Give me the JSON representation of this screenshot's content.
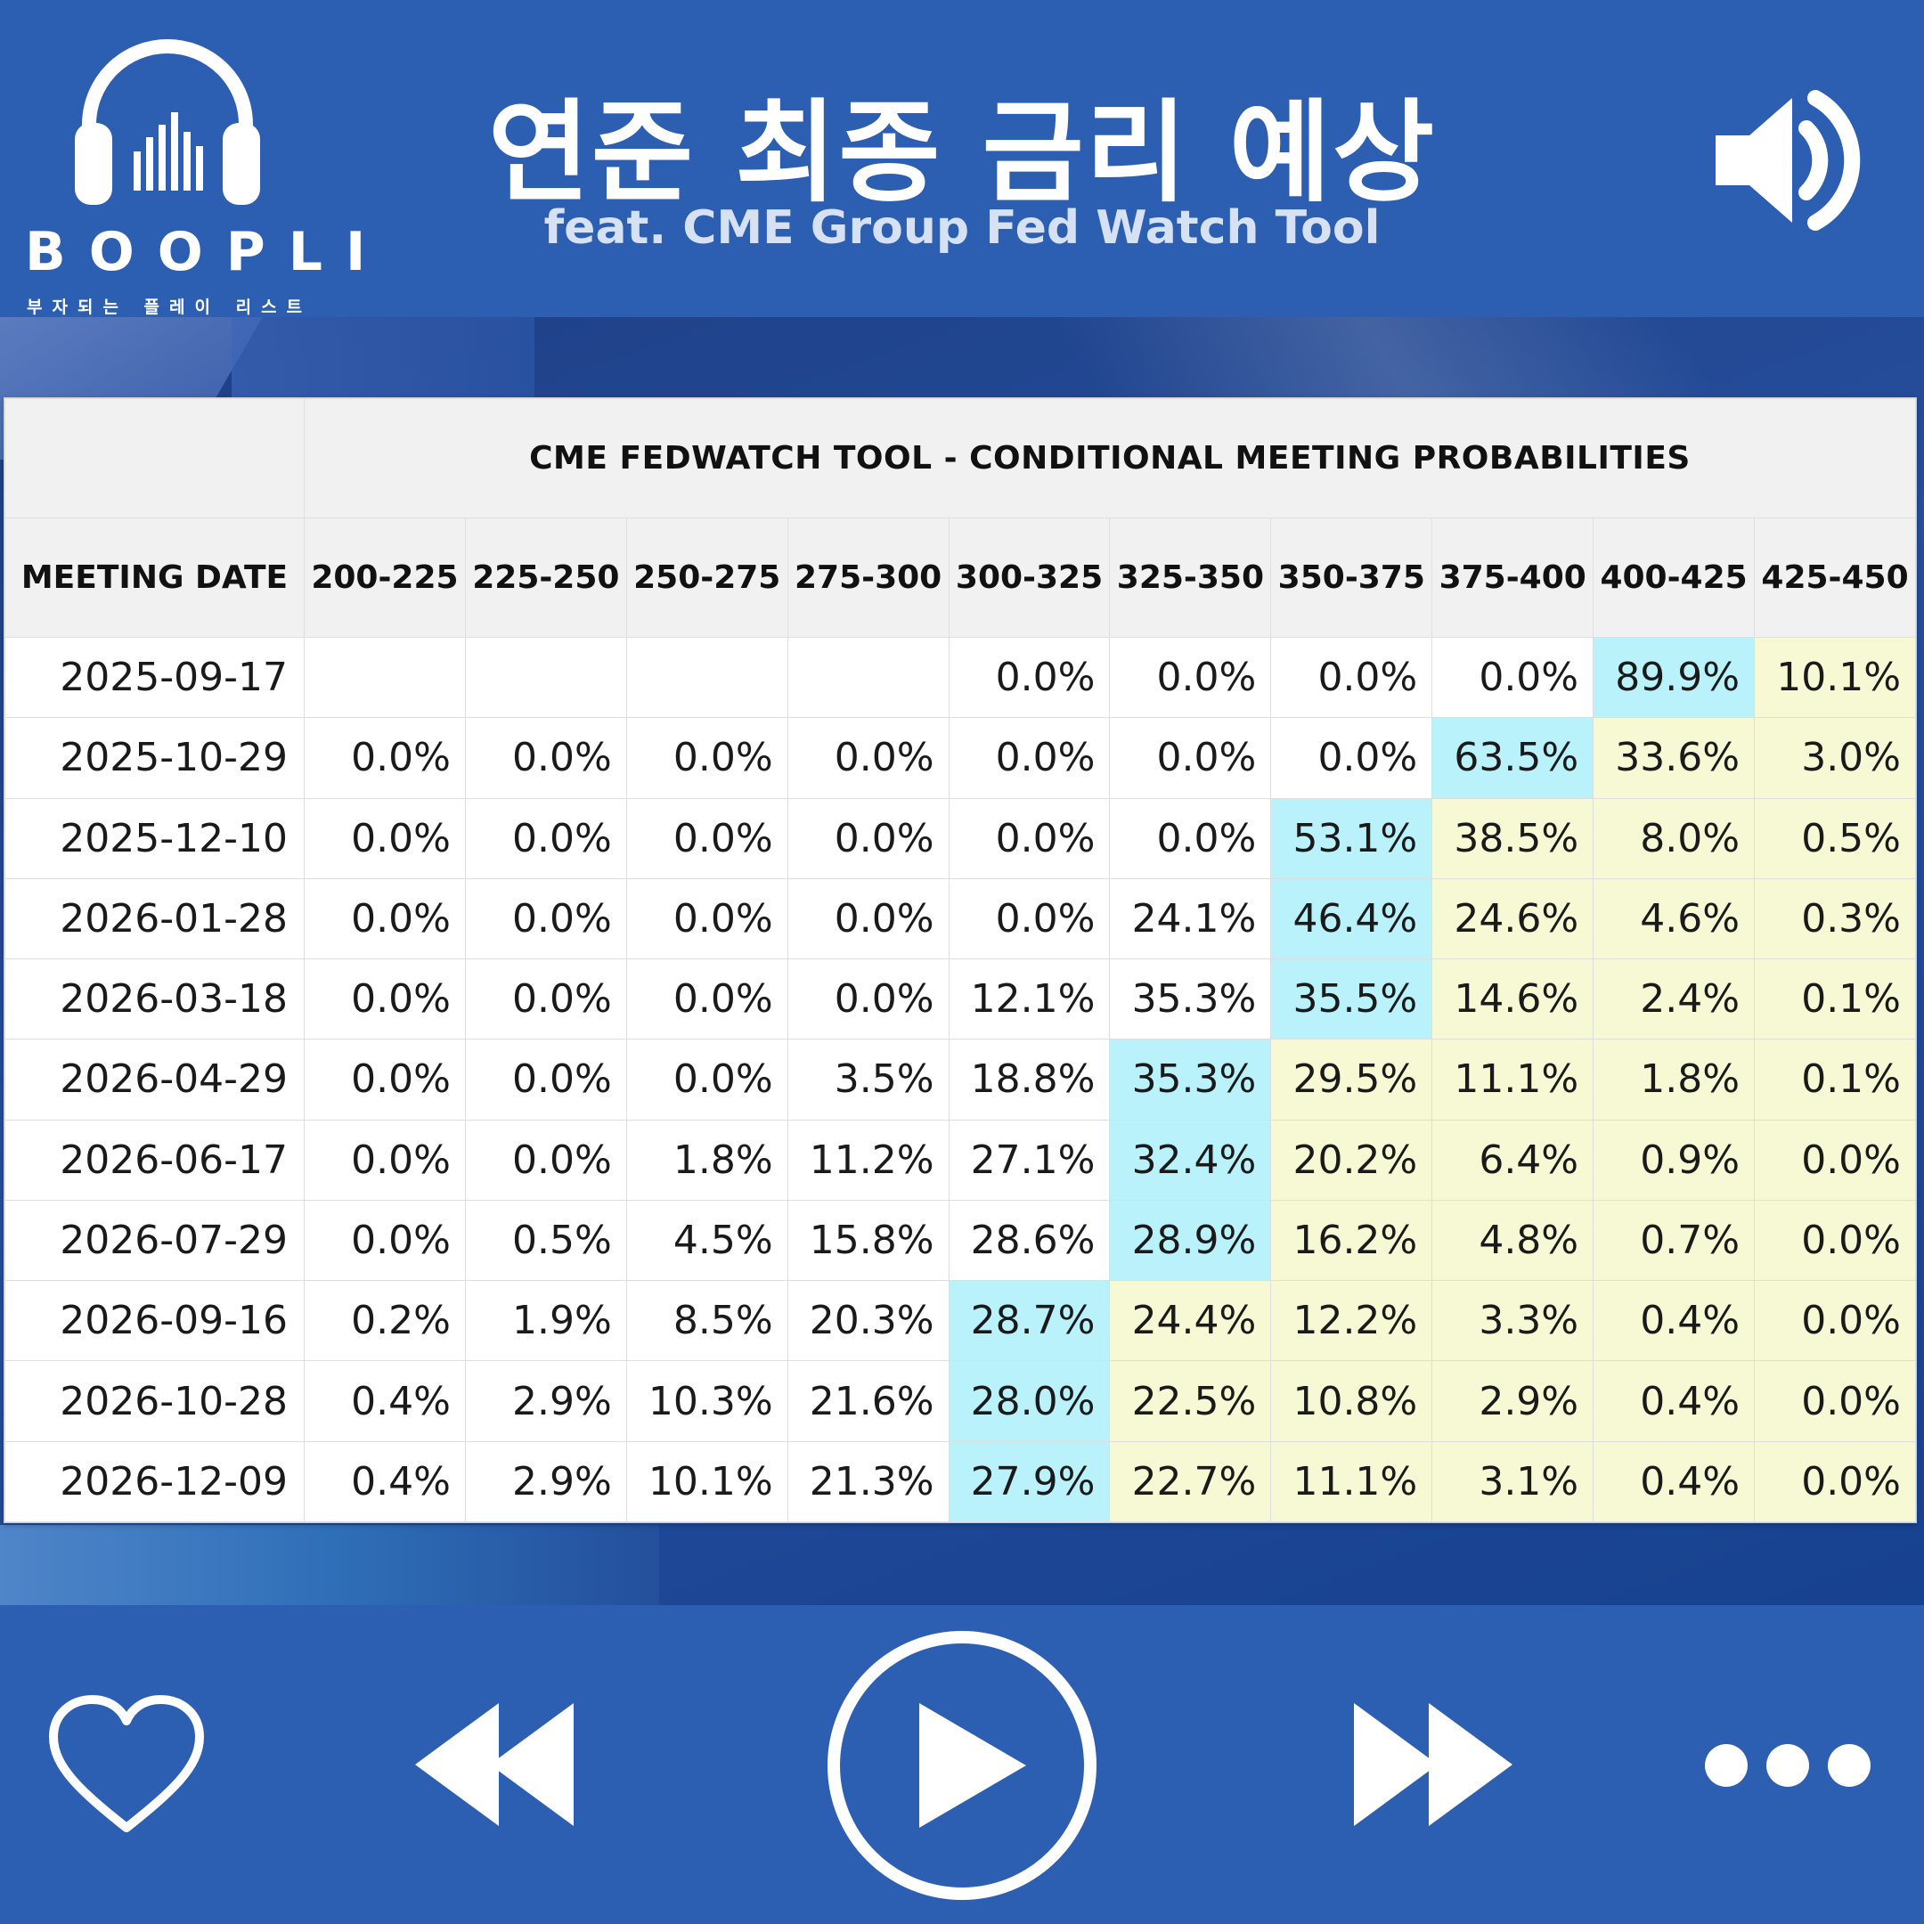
{
  "header": {
    "logo_word": "BOOPLI",
    "logo_sub": "부자되는 플레이 리스트",
    "title": "연준 최종 금리 예상",
    "subtitle": "feat. CME Group Fed Watch Tool",
    "speaker_icon": "speaker-volume-icon"
  },
  "table": {
    "caption": "CME FEDWATCH TOOL - CONDITIONAL MEETING PROBABILITIES",
    "date_header": "MEETING DATE",
    "columns": [
      "200-225",
      "225-250",
      "250-275",
      "275-300",
      "300-325",
      "325-350",
      "350-375",
      "375-400",
      "400-425",
      "425-450"
    ],
    "rows": [
      {
        "date": "2025-09-17",
        "values": [
          "",
          "",
          "",
          "",
          "0.0%",
          "0.0%",
          "0.0%",
          "0.0%",
          "89.9%",
          "10.1%"
        ],
        "hi": 8,
        "lo_from": 9
      },
      {
        "date": "2025-10-29",
        "values": [
          "0.0%",
          "0.0%",
          "0.0%",
          "0.0%",
          "0.0%",
          "0.0%",
          "0.0%",
          "63.5%",
          "33.6%",
          "3.0%"
        ],
        "hi": 7,
        "lo_from": 8
      },
      {
        "date": "2025-12-10",
        "values": [
          "0.0%",
          "0.0%",
          "0.0%",
          "0.0%",
          "0.0%",
          "0.0%",
          "53.1%",
          "38.5%",
          "8.0%",
          "0.5%"
        ],
        "hi": 6,
        "lo_from": 7
      },
      {
        "date": "2026-01-28",
        "values": [
          "0.0%",
          "0.0%",
          "0.0%",
          "0.0%",
          "0.0%",
          "24.1%",
          "46.4%",
          "24.6%",
          "4.6%",
          "0.3%"
        ],
        "hi": 6,
        "lo_from": 7
      },
      {
        "date": "2026-03-18",
        "values": [
          "0.0%",
          "0.0%",
          "0.0%",
          "0.0%",
          "12.1%",
          "35.3%",
          "35.5%",
          "14.6%",
          "2.4%",
          "0.1%"
        ],
        "hi": 6,
        "lo_from": 7
      },
      {
        "date": "2026-04-29",
        "values": [
          "0.0%",
          "0.0%",
          "0.0%",
          "3.5%",
          "18.8%",
          "35.3%",
          "29.5%",
          "11.1%",
          "1.8%",
          "0.1%"
        ],
        "hi": 5,
        "lo_from": 6
      },
      {
        "date": "2026-06-17",
        "values": [
          "0.0%",
          "0.0%",
          "1.8%",
          "11.2%",
          "27.1%",
          "32.4%",
          "20.2%",
          "6.4%",
          "0.9%",
          "0.0%"
        ],
        "hi": 5,
        "lo_from": 6
      },
      {
        "date": "2026-07-29",
        "values": [
          "0.0%",
          "0.5%",
          "4.5%",
          "15.8%",
          "28.6%",
          "28.9%",
          "16.2%",
          "4.8%",
          "0.7%",
          "0.0%"
        ],
        "hi": 5,
        "lo_from": 6
      },
      {
        "date": "2026-09-16",
        "values": [
          "0.2%",
          "1.9%",
          "8.5%",
          "20.3%",
          "28.7%",
          "24.4%",
          "12.2%",
          "3.3%",
          "0.4%",
          "0.0%"
        ],
        "hi": 4,
        "lo_from": 5
      },
      {
        "date": "2026-10-28",
        "values": [
          "0.4%",
          "2.9%",
          "10.3%",
          "21.6%",
          "28.0%",
          "22.5%",
          "10.8%",
          "2.9%",
          "0.4%",
          "0.0%"
        ],
        "hi": 4,
        "lo_from": 5
      },
      {
        "date": "2026-12-09",
        "values": [
          "0.4%",
          "2.9%",
          "10.1%",
          "21.3%",
          "27.9%",
          "22.7%",
          "11.1%",
          "3.1%",
          "0.4%",
          "0.0%"
        ],
        "hi": 4,
        "lo_from": 5
      }
    ],
    "highlight_color": "#b9f2fb",
    "shade_color": "#f7f8d4"
  },
  "player": {
    "icons": [
      "heart-icon",
      "rewind-icon",
      "play-icon",
      "fast-forward-icon",
      "more-icon"
    ]
  },
  "colors": {
    "brand_blue": "#2c5fb1",
    "white": "#ffffff"
  }
}
